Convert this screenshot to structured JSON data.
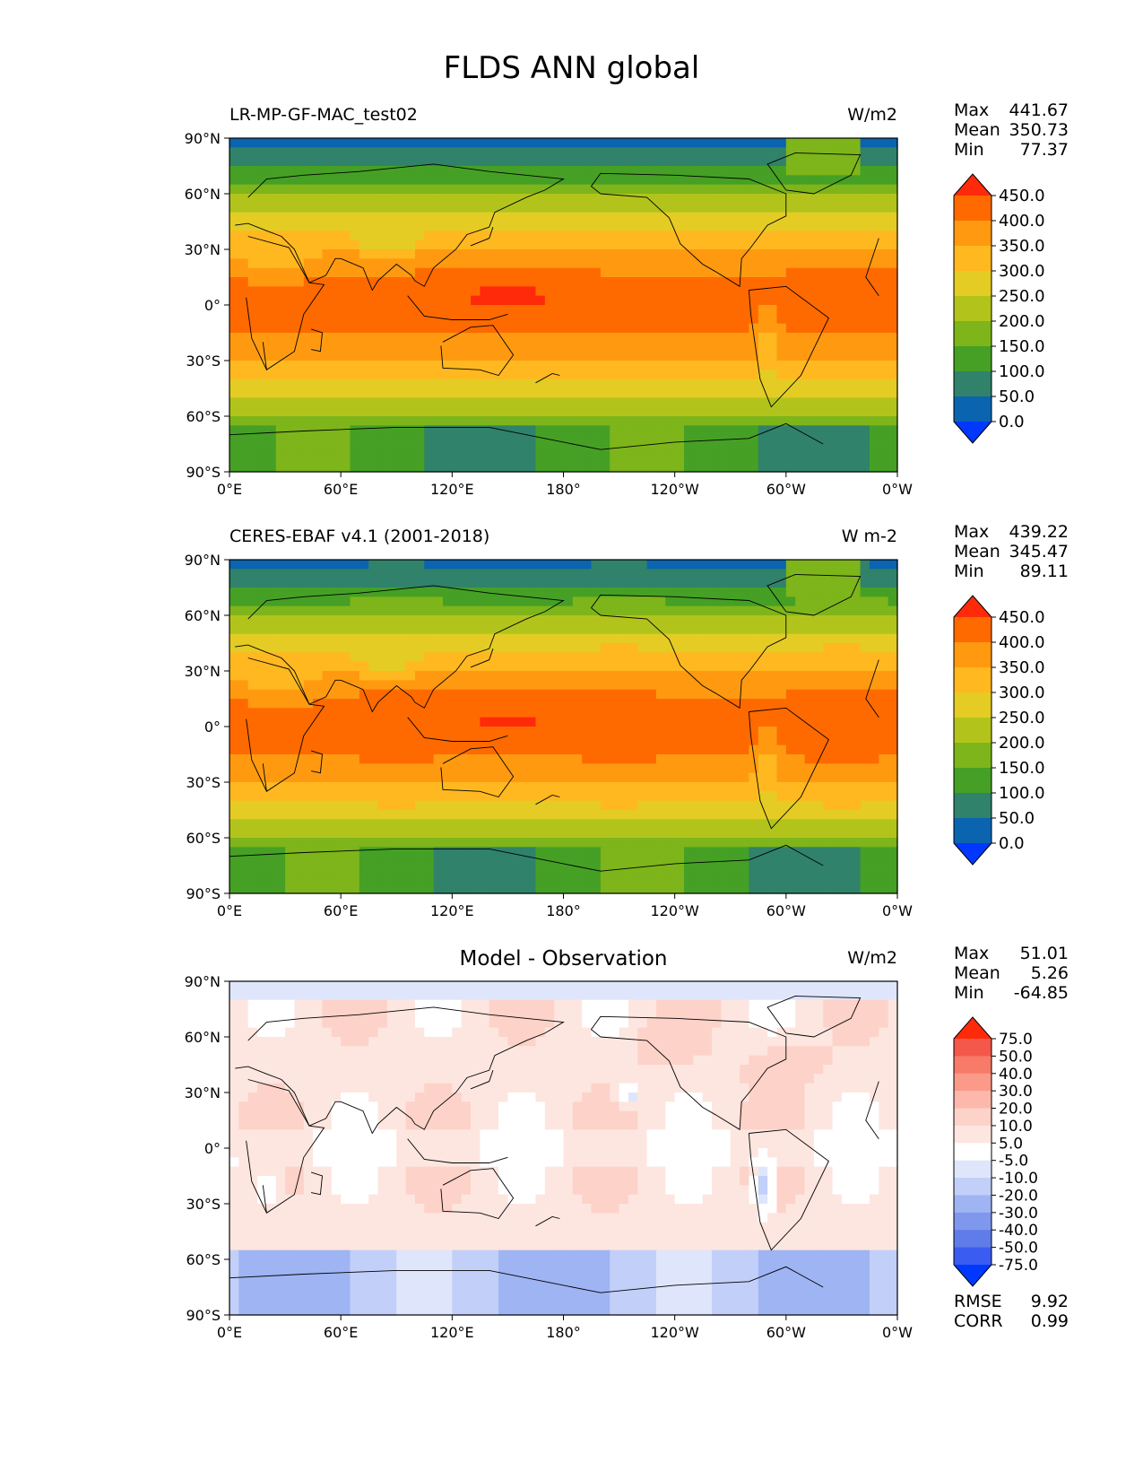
{
  "figure": {
    "title": "FLDS ANN global"
  },
  "axes": {
    "lat_ticks": [
      "90°N",
      "60°N",
      "30°N",
      "0°",
      "30°S",
      "60°S",
      "90°S"
    ],
    "lon_ticks": [
      "0°E",
      "60°E",
      "120°E",
      "180°",
      "120°W",
      "60°W",
      "0°W"
    ]
  },
  "panels": [
    {
      "title_left": "LR-MP-GF-MAC_test02",
      "title_center": "",
      "units": "W/m2",
      "stats": [
        {
          "label": "Max",
          "value": "441.67"
        },
        {
          "label": "Mean",
          "value": "350.73"
        },
        {
          "label": "Min",
          "value": "77.37"
        }
      ],
      "extra": [],
      "colorbar": {
        "labels": [
          "450.0",
          "400.0",
          "350.0",
          "300.0",
          "250.0",
          "200.0",
          "150.0",
          "100.0",
          "50.0",
          "0.0"
        ],
        "colors": [
          "#ff2a0a",
          "#ff6a00",
          "#ff9a10",
          "#ffb820",
          "#e4cc24",
          "#b2c41c",
          "#7db51a",
          "#45a025",
          "#30826a",
          "#0a64b0",
          "#0038ff"
        ]
      },
      "field": "flds_model"
    },
    {
      "title_left": "CERES-EBAF v4.1 (2001-2018)",
      "title_center": "",
      "units": "W m-2",
      "stats": [
        {
          "label": "Max",
          "value": "439.22"
        },
        {
          "label": "Mean",
          "value": "345.47"
        },
        {
          "label": "Min",
          "value": "89.11"
        }
      ],
      "extra": [],
      "colorbar": {
        "labels": [
          "450.0",
          "400.0",
          "350.0",
          "300.0",
          "250.0",
          "200.0",
          "150.0",
          "100.0",
          "50.0",
          "0.0"
        ],
        "colors": [
          "#ff2a0a",
          "#ff6a00",
          "#ff9a10",
          "#ffb820",
          "#e4cc24",
          "#b2c41c",
          "#7db51a",
          "#45a025",
          "#30826a",
          "#0a64b0",
          "#0038ff"
        ]
      },
      "field": "flds_obs"
    },
    {
      "title_left": "",
      "title_center": "Model - Observation",
      "units": "W/m2",
      "stats": [
        {
          "label": "Max",
          "value": "51.01"
        },
        {
          "label": "Mean",
          "value": "5.26"
        },
        {
          "label": "Min",
          "value": "-64.85"
        }
      ],
      "extra": [
        {
          "label": "RMSE",
          "value": "9.92"
        },
        {
          "label": "CORR",
          "value": "0.99"
        }
      ],
      "colorbar": {
        "labels": [
          "75.0",
          "50.0",
          "40.0",
          "30.0",
          "20.0",
          "10.0",
          "5.0",
          "-5.0",
          "-10.0",
          "-20.0",
          "-30.0",
          "-40.0",
          "-50.0",
          "-75.0"
        ],
        "colors": [
          "#ff2a0a",
          "#f4584a",
          "#f87a68",
          "#fb9a88",
          "#fcb8aa",
          "#fdd2c8",
          "#fde6e0",
          "#ffffff",
          "#dfe6fb",
          "#c2cff8",
          "#9fb4f3",
          "#7f98ee",
          "#5f7ce9",
          "#3a5cf0",
          "#0038ff"
        ]
      },
      "field": "flds_diff"
    }
  ]
}
